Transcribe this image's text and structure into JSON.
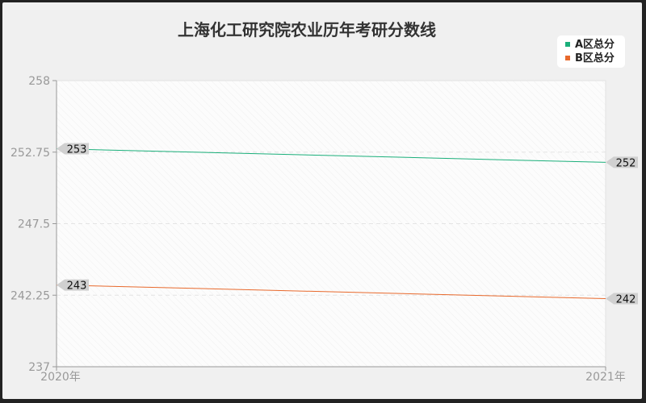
{
  "chart_data": {
    "type": "line",
    "title": "上海化工研究院农业历年考研分数线",
    "x": [
      "2020年",
      "2021年"
    ],
    "yticks": [
      "258",
      "252.75",
      "247.5",
      "242.25",
      "237"
    ],
    "ylim": [
      237,
      258
    ],
    "grid": true,
    "legend_position": "top-right",
    "series": [
      {
        "name": "A区总分",
        "values": [
          253,
          252
        ],
        "color": "#1aaf7a"
      },
      {
        "name": "B区总分",
        "values": [
          243,
          242
        ],
        "color": "#e8692c"
      }
    ]
  }
}
